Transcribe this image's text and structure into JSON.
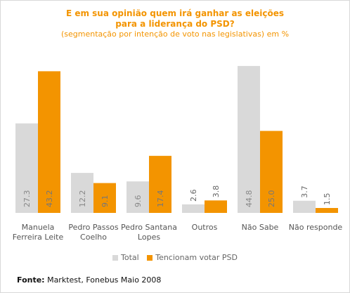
{
  "chart_data": {
    "type": "bar",
    "title_lines": [
      "E em sua opinião quem irá ganhar as eleições",
      "para a liderança do PSD?"
    ],
    "subtitle": "(segmentação por intenção de voto nas legislativas) em %",
    "categories": [
      [
        "Manuela",
        "Ferreira Leite"
      ],
      [
        "Pedro Passos",
        "Coelho"
      ],
      [
        "Pedro Santana",
        "Lopes"
      ],
      [
        "Outros"
      ],
      [
        "Não Sabe"
      ],
      [
        "Não responde"
      ]
    ],
    "series": [
      {
        "name": "Total",
        "color": "#d9d9d9",
        "values": [
          27.3,
          12.2,
          9.6,
          2.6,
          44.8,
          3.7
        ],
        "labels": [
          "27.3",
          "12.2",
          "9.6",
          "2.6",
          "44.8",
          "3.7"
        ]
      },
      {
        "name": "Tencionam votar PSD",
        "color": "#f39400",
        "values": [
          43.2,
          9.1,
          17.4,
          3.8,
          25.0,
          1.5
        ],
        "labels": [
          "43.2",
          "9.1",
          "17.4",
          "3.8",
          "25.0",
          "1.5"
        ]
      }
    ],
    "ylim": [
      0,
      45
    ],
    "grid": false,
    "legend_position": "bottom"
  },
  "source": {
    "label": "Fonte:",
    "text": " Marktest, Fonebus Maio 2008"
  }
}
